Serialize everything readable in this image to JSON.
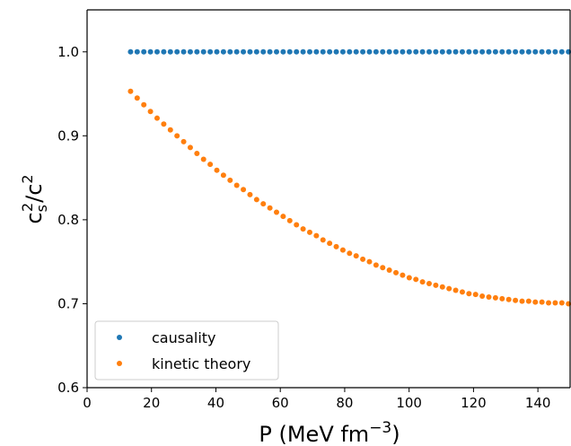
{
  "chart_data": {
    "type": "scatter",
    "xlabel": {
      "main": "P (MeV fm",
      "sup": "−3",
      "close": ")"
    },
    "ylabel": {
      "c": "c",
      "s": "s",
      "two_a": "2",
      "slash": "/c",
      "two_b": "2"
    },
    "xlim": [
      0,
      150
    ],
    "ylim": [
      0.6,
      1.05
    ],
    "xticks": [
      0,
      20,
      40,
      60,
      80,
      100,
      120,
      140
    ],
    "xtick_labels": [
      "0",
      "20",
      "40",
      "60",
      "80",
      "100",
      "120",
      "140"
    ],
    "yticks": [
      0.6,
      0.7,
      0.8,
      0.9,
      1.0
    ],
    "ytick_labels": [
      "0.6",
      "0.7",
      "0.8",
      "0.9",
      "1.0"
    ],
    "grid": false,
    "legend_position": "lower-left",
    "x": [
      13.5,
      15.56,
      17.62,
      19.68,
      21.74,
      23.81,
      25.87,
      27.93,
      29.99,
      32.05,
      34.11,
      36.17,
      38.23,
      40.29,
      42.35,
      44.41,
      46.47,
      48.53,
      50.59,
      52.65,
      54.71,
      56.77,
      58.83,
      60.89,
      62.95,
      65.02,
      67.08,
      69.14,
      71.2,
      73.26,
      75.32,
      77.38,
      79.44,
      81.5,
      83.56,
      85.62,
      87.68,
      89.74,
      91.8,
      93.86,
      95.92,
      97.98,
      100.05,
      102.11,
      104.17,
      106.23,
      108.29,
      110.35,
      112.41,
      114.47,
      116.53,
      118.59,
      120.65,
      122.71,
      124.77,
      126.83,
      128.89,
      130.95,
      133.02,
      135.08,
      137.14,
      139.2,
      141.26,
      143.32,
      145.38,
      147.44,
      149.5
    ],
    "series": [
      {
        "name": "causality",
        "color": "#1f77b4",
        "values": [
          1.0,
          1.0,
          1.0,
          1.0,
          1.0,
          1.0,
          1.0,
          1.0,
          1.0,
          1.0,
          1.0,
          1.0,
          1.0,
          1.0,
          1.0,
          1.0,
          1.0,
          1.0,
          1.0,
          1.0,
          1.0,
          1.0,
          1.0,
          1.0,
          1.0,
          1.0,
          1.0,
          1.0,
          1.0,
          1.0,
          1.0,
          1.0,
          1.0,
          1.0,
          1.0,
          1.0,
          1.0,
          1.0,
          1.0,
          1.0,
          1.0,
          1.0,
          1.0,
          1.0,
          1.0,
          1.0,
          1.0,
          1.0,
          1.0,
          1.0,
          1.0,
          1.0,
          1.0,
          1.0,
          1.0,
          1.0,
          1.0,
          1.0,
          1.0,
          1.0,
          1.0,
          1.0,
          1.0,
          1.0,
          1.0,
          1.0,
          1.0
        ]
      },
      {
        "name": "kinetic theory",
        "color": "#ff7f0e",
        "values": [
          0.953,
          0.945,
          0.937,
          0.929,
          0.921,
          0.914,
          0.907,
          0.9,
          0.893,
          0.886,
          0.879,
          0.872,
          0.866,
          0.859,
          0.853,
          0.847,
          0.841,
          0.836,
          0.83,
          0.824,
          0.819,
          0.814,
          0.809,
          0.804,
          0.799,
          0.794,
          0.789,
          0.785,
          0.781,
          0.776,
          0.772,
          0.768,
          0.764,
          0.76,
          0.757,
          0.753,
          0.75,
          0.746,
          0.743,
          0.74,
          0.737,
          0.734,
          0.731,
          0.729,
          0.726,
          0.724,
          0.722,
          0.72,
          0.718,
          0.716,
          0.714,
          0.712,
          0.711,
          0.709,
          0.708,
          0.707,
          0.706,
          0.705,
          0.704,
          0.703,
          0.703,
          0.702,
          0.702,
          0.701,
          0.701,
          0.701,
          0.7
        ]
      }
    ]
  }
}
